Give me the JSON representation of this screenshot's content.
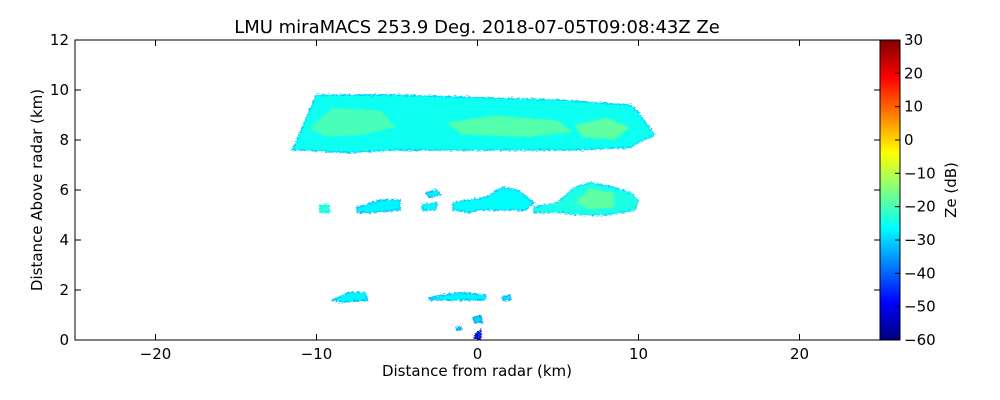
{
  "chart_data": {
    "type": "heatmap",
    "title": "LMU miraMACS 253.9 Deg. 2018-07-05T09:08:43Z  Ze",
    "xlabel": "Distance from radar (km)",
    "ylabel": "Distance Above radar  (km)",
    "xlim": [
      -25,
      25
    ],
    "ylim": [
      0,
      12
    ],
    "x_ticks": [
      -20,
      -10,
      0,
      10,
      20
    ],
    "x_tick_labels": [
      "−20",
      "−10",
      "0",
      "10",
      "20"
    ],
    "y_ticks": [
      0,
      2,
      4,
      6,
      8,
      10,
      12
    ],
    "y_tick_labels": [
      "0",
      "2",
      "4",
      "6",
      "8",
      "10",
      "12"
    ],
    "grid": false,
    "colormap": "jet",
    "colorbar": {
      "label": "Ze (dB)",
      "min": -60,
      "max": 30,
      "ticks": [
        30,
        20,
        10,
        0,
        -10,
        -20,
        -30,
        -40,
        -50,
        -60
      ],
      "tick_labels": [
        "30",
        "20",
        "10",
        "0",
        "−10",
        "−20",
        "−30",
        "−40",
        "−50",
        "−60"
      ]
    },
    "regions": [
      {
        "name": "upper-cloud-layer",
        "polygon": [
          [
            -11.5,
            7.6
          ],
          [
            -10,
            9.8
          ],
          [
            -5,
            9.8
          ],
          [
            0,
            9.7
          ],
          [
            5,
            9.6
          ],
          [
            9.5,
            9.4
          ],
          [
            10,
            9.1
          ],
          [
            11,
            8.2
          ],
          [
            10,
            7.9
          ],
          [
            9.5,
            7.7
          ],
          [
            6,
            7.6
          ],
          [
            0,
            7.6
          ],
          [
            -5,
            7.6
          ],
          [
            -8,
            7.5
          ],
          [
            -11,
            7.6
          ]
        ],
        "ze": -25
      },
      {
        "name": "upper-core-1",
        "polygon": [
          [
            -10.5,
            8.5
          ],
          [
            -9,
            9.3
          ],
          [
            -6,
            9.2
          ],
          [
            -5,
            8.5
          ],
          [
            -7,
            8.2
          ],
          [
            -9.5,
            8.1
          ]
        ],
        "ze": -20
      },
      {
        "name": "upper-core-2",
        "polygon": [
          [
            -2,
            8.7
          ],
          [
            1,
            9.0
          ],
          [
            5,
            8.8
          ],
          [
            6,
            8.3
          ],
          [
            3,
            8.1
          ],
          [
            -1,
            8.2
          ]
        ],
        "ze": -19
      },
      {
        "name": "upper-core-3",
        "polygon": [
          [
            6,
            8.6
          ],
          [
            8,
            8.9
          ],
          [
            9.5,
            8.5
          ],
          [
            8.5,
            8.0
          ],
          [
            6.5,
            8.1
          ]
        ],
        "ze": -18
      },
      {
        "name": "mid-blob-1",
        "polygon": [
          [
            -7.5,
            5.3
          ],
          [
            -6,
            5.6
          ],
          [
            -4.8,
            5.6
          ],
          [
            -4.8,
            5.2
          ],
          [
            -6.5,
            5.1
          ],
          [
            -7.5,
            5.1
          ]
        ],
        "ze": -27
      },
      {
        "name": "mid-blob-2",
        "polygon": [
          [
            -1.5,
            5.5
          ],
          [
            -0.5,
            5.6
          ],
          [
            0.5,
            5.7
          ],
          [
            1.5,
            6.1
          ],
          [
            2.5,
            6.0
          ],
          [
            3.5,
            5.5
          ],
          [
            3,
            5.2
          ],
          [
            1.5,
            5.2
          ],
          [
            0,
            5.2
          ],
          [
            -0.5,
            5.1
          ],
          [
            -1.5,
            5.2
          ]
        ],
        "ze": -26
      },
      {
        "name": "mid-blob-3",
        "polygon": [
          [
            3.5,
            5.3
          ],
          [
            5,
            5.5
          ],
          [
            6,
            6.1
          ],
          [
            7,
            6.3
          ],
          [
            8.5,
            6.1
          ],
          [
            9.5,
            5.9
          ],
          [
            10,
            5.6
          ],
          [
            9.8,
            5.2
          ],
          [
            8,
            5.0
          ],
          [
            6.5,
            5.0
          ],
          [
            5,
            5.1
          ],
          [
            3.5,
            5.1
          ]
        ],
        "ze": -24
      },
      {
        "name": "mid-core-3",
        "polygon": [
          [
            6,
            5.5
          ],
          [
            7,
            6.1
          ],
          [
            8.5,
            5.9
          ],
          [
            8.5,
            5.3
          ],
          [
            7,
            5.2
          ]
        ],
        "ze": -18
      },
      {
        "name": "mid-speck-1",
        "polygon": [
          [
            -3.2,
            5.9
          ],
          [
            -2.5,
            6.0
          ],
          [
            -2.3,
            5.8
          ],
          [
            -3.0,
            5.7
          ]
        ],
        "ze": -27
      },
      {
        "name": "mid-speck-2",
        "polygon": [
          [
            -3.5,
            5.4
          ],
          [
            -2.5,
            5.5
          ],
          [
            -2.6,
            5.2
          ],
          [
            -3.4,
            5.2
          ]
        ],
        "ze": -26
      },
      {
        "name": "mid-speck-3",
        "polygon": [
          [
            -9.8,
            5.4
          ],
          [
            -9.2,
            5.4
          ],
          [
            -9.2,
            5.1
          ],
          [
            -9.8,
            5.1
          ]
        ],
        "ze": -22
      },
      {
        "name": "low-patch-1",
        "polygon": [
          [
            -9,
            1.6
          ],
          [
            -8,
            1.9
          ],
          [
            -7,
            1.9
          ],
          [
            -6.8,
            1.6
          ],
          [
            -8.5,
            1.5
          ]
        ],
        "ze": -27
      },
      {
        "name": "low-patch-2",
        "polygon": [
          [
            -3,
            1.7
          ],
          [
            -1,
            1.9
          ],
          [
            0.5,
            1.8
          ],
          [
            0.5,
            1.6
          ],
          [
            -3,
            1.6
          ]
        ],
        "ze": -27
      },
      {
        "name": "low-speck-1",
        "polygon": [
          [
            1.5,
            1.7
          ],
          [
            2,
            1.8
          ],
          [
            2.1,
            1.6
          ],
          [
            1.6,
            1.6
          ]
        ],
        "ze": -28
      },
      {
        "name": "low-speck-2",
        "polygon": [
          [
            -0.3,
            0.9
          ],
          [
            0.2,
            1.0
          ],
          [
            0.3,
            0.7
          ],
          [
            -0.2,
            0.7
          ]
        ],
        "ze": -30
      },
      {
        "name": "low-speck-3",
        "polygon": [
          [
            -0.2,
            0.2
          ],
          [
            0.2,
            0.4
          ],
          [
            0.2,
            0.05
          ],
          [
            -0.2,
            0.05
          ]
        ],
        "ze": -45
      },
      {
        "name": "low-speck-4",
        "polygon": [
          [
            -1.3,
            0.5
          ],
          [
            -1.0,
            0.55
          ],
          [
            -1.0,
            0.4
          ],
          [
            -1.3,
            0.4
          ]
        ],
        "ze": -30
      }
    ]
  }
}
